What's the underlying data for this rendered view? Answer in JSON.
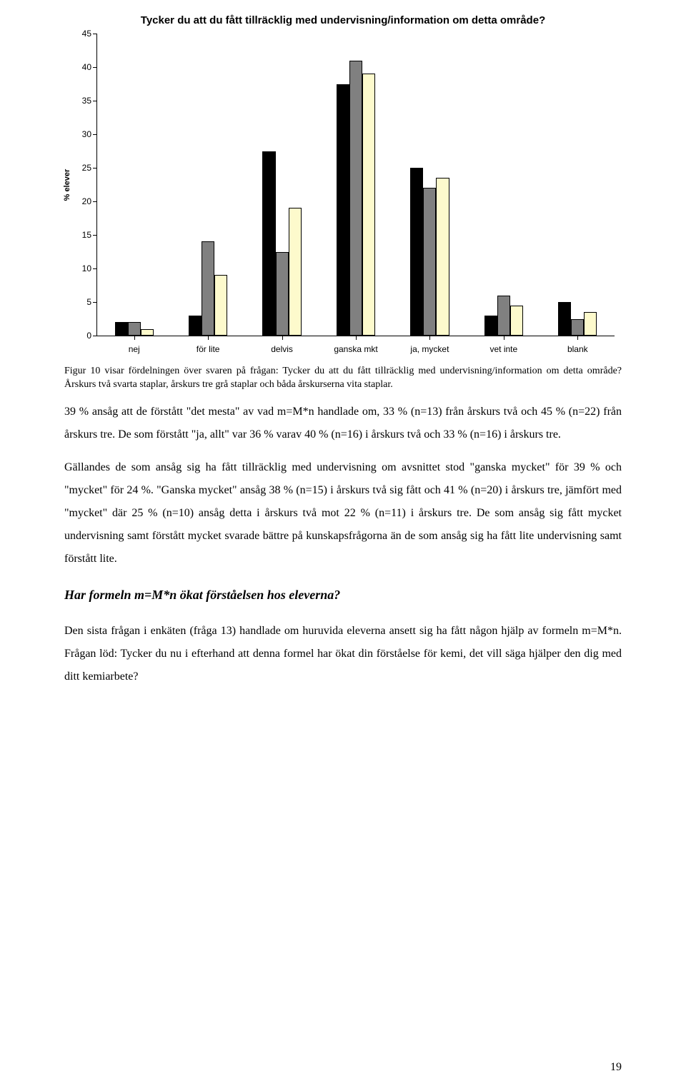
{
  "chart": {
    "type": "bar",
    "title": "Tycker du att du fått tillräcklig med undervisning/information om detta område?",
    "y_axis_label": "% elever",
    "y_label_fontsize": 11,
    "title_fontsize": 15,
    "categories": [
      "nej",
      "för lite",
      "delvis",
      "ganska mkt",
      "ja, mycket",
      "vet inte",
      "blank"
    ],
    "series": [
      {
        "name": "Årskurs två",
        "color": "#000000",
        "values": [
          2,
          3,
          27.5,
          37.5,
          25,
          3,
          5
        ]
      },
      {
        "name": "Årskurs tre",
        "color": "#808080",
        "values": [
          2,
          14,
          12.5,
          41,
          22,
          6,
          2.5
        ]
      },
      {
        "name": "Båda",
        "color": "#fdfacc",
        "values": [
          1,
          9,
          19,
          39,
          23.5,
          4.5,
          3.5
        ]
      }
    ],
    "ymin": 0,
    "ymax": 45,
    "ytick_step": 5,
    "x_label_fontsize": 12,
    "y_tick_fontsize": 12,
    "bar_group_width_pct": 7.5,
    "bar_width_pct": 2.5,
    "background_color": "#ffffff",
    "border_color": "#000000"
  },
  "caption": "Figur 10 visar fördelningen över svaren på frågan: Tycker du att du fått tillräcklig med undervisning/information om detta område? Årskurs två svarta staplar, årskurs tre grå staplar och båda årskurserna vita staplar.",
  "para1": "39 % ansåg att de förstått \"det mesta\" av vad m=M*n handlade om, 33 % (n=13) från årskurs två och 45 % (n=22) från årskurs tre. De som förstått \"ja, allt\" var 36 % varav 40 % (n=16) i årskurs två och 33 % (n=16) i årskurs tre.",
  "para2": "Gällandes de som ansåg sig ha fått tillräcklig med undervisning om avsnittet stod \"ganska mycket\" för 39 % och \"mycket\" för 24 %. \"Ganska mycket\" ansåg 38 % (n=15) i årskurs två sig fått och 41 % (n=20) i årskurs tre, jämfört med \"mycket\" där 25 % (n=10) ansåg detta i årskurs två mot 22 % (n=11) i årskurs tre. De som ansåg sig fått mycket undervisning samt förstått mycket svarade bättre på kunskapsfrågorna än de som ansåg sig ha fått lite undervisning samt förstått lite.",
  "heading": "Har formeln m=M*n ökat förståelsen hos eleverna?",
  "para3": "Den sista frågan i enkäten (fråga 13) handlade om huruvida eleverna ansett sig ha fått någon hjälp av formeln m=M*n. Frågan löd: Tycker du nu i efterhand att denna formel har ökat din förståelse för kemi, det vill säga hjälper den dig med ditt kemiarbete?",
  "page_number": "19"
}
